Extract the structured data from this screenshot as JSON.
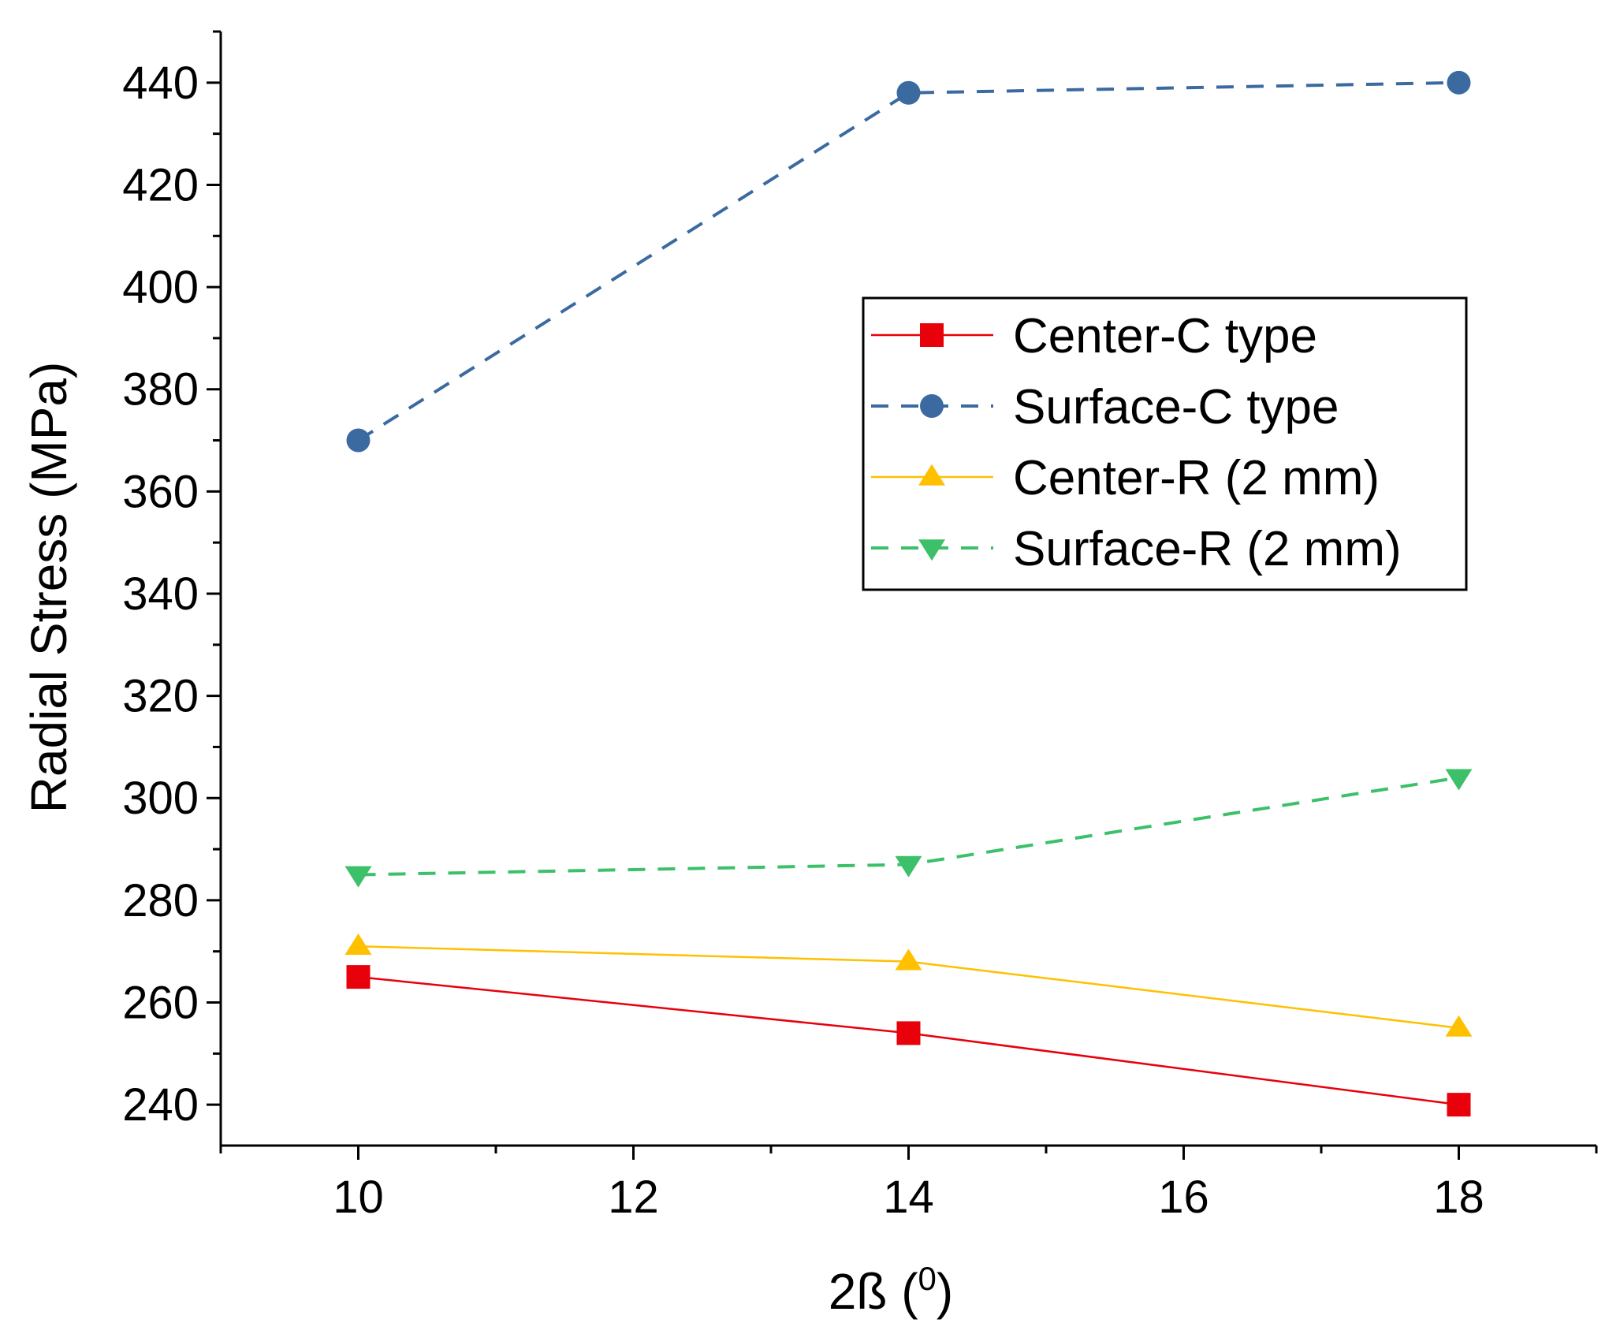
{
  "chart_data": {
    "type": "line",
    "title": "",
    "xlabel": "2ß (",
    "xlabel_superscript": "0",
    "xlabel_suffix": ")",
    "ylabel": "Radial Stress (MPa)",
    "xlim": [
      9,
      19
    ],
    "ylim": [
      232,
      450
    ],
    "x_ticks": [
      10,
      12,
      14,
      16,
      18
    ],
    "x_minor_ticks": [
      9,
      11,
      13,
      15,
      17,
      19
    ],
    "y_ticks": [
      240,
      260,
      280,
      300,
      320,
      340,
      360,
      380,
      400,
      420,
      440
    ],
    "y_minor_ticks": [
      230,
      250,
      270,
      290,
      310,
      330,
      350,
      370,
      390,
      410,
      430,
      450
    ],
    "grid": false,
    "legend_position": "center-right",
    "x": [
      10,
      14,
      18
    ],
    "series": [
      {
        "name": "Center-C type",
        "values": [
          265,
          254,
          240
        ],
        "color": "#e8000b",
        "marker": "square",
        "dashed": false
      },
      {
        "name": "Surface-C type",
        "values": [
          370,
          438,
          440
        ],
        "color": "#3b6aa0",
        "marker": "circle",
        "dashed": true
      },
      {
        "name": "Center-R (2 mm)",
        "values": [
          271,
          268,
          255
        ],
        "color": "#ffc000",
        "marker": "triangle-up",
        "dashed": false
      },
      {
        "name": "Surface-R (2 mm)",
        "values": [
          285,
          287,
          304
        ],
        "color": "#3cc06a",
        "marker": "triangle-down",
        "dashed": true
      }
    ]
  }
}
